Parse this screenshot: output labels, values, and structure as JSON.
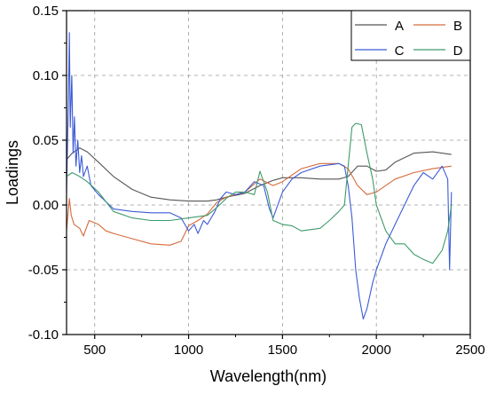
{
  "chart_data": {
    "type": "line",
    "title": "",
    "xlabel": "Wavelength(nm)",
    "ylabel": "Loadings",
    "xlim": [
      350,
      2500
    ],
    "ylim": [
      -0.1,
      0.15
    ],
    "xticks": [
      500,
      1000,
      1500,
      2000,
      2500
    ],
    "xtick_labels": [
      "500",
      "1000",
      "1500",
      "2000",
      "2500"
    ],
    "yticks": [
      -0.1,
      -0.05,
      0.0,
      0.05,
      0.1,
      0.15
    ],
    "ytick_labels": [
      "-0.10",
      "-0.05",
      "0.00",
      "0.05",
      "0.10",
      "0.15"
    ],
    "grid": true,
    "legend_position": "top-right",
    "series": [
      {
        "name": "A",
        "color": "#555555",
        "points": [
          [
            350,
            0.035
          ],
          [
            380,
            0.04
          ],
          [
            420,
            0.044
          ],
          [
            460,
            0.041
          ],
          [
            520,
            0.033
          ],
          [
            600,
            0.022
          ],
          [
            700,
            0.012
          ],
          [
            800,
            0.006
          ],
          [
            900,
            0.004
          ],
          [
            1000,
            0.003
          ],
          [
            1100,
            0.003
          ],
          [
            1150,
            0.004
          ],
          [
            1200,
            0.006
          ],
          [
            1300,
            0.009
          ],
          [
            1380,
            0.015
          ],
          [
            1450,
            0.019
          ],
          [
            1500,
            0.021
          ],
          [
            1600,
            0.021
          ],
          [
            1700,
            0.02
          ],
          [
            1800,
            0.02
          ],
          [
            1850,
            0.022
          ],
          [
            1900,
            0.03
          ],
          [
            1950,
            0.03
          ],
          [
            2000,
            0.026
          ],
          [
            2050,
            0.027
          ],
          [
            2100,
            0.033
          ],
          [
            2200,
            0.04
          ],
          [
            2300,
            0.041
          ],
          [
            2400,
            0.039
          ]
        ]
      },
      {
        "name": "B",
        "color": "#d66a3c",
        "points": [
          [
            350,
            -0.02
          ],
          [
            365,
            0.005
          ],
          [
            375,
            -0.008
          ],
          [
            390,
            -0.015
          ],
          [
            420,
            -0.018
          ],
          [
            440,
            -0.024
          ],
          [
            470,
            -0.012
          ],
          [
            520,
            -0.015
          ],
          [
            560,
            -0.02
          ],
          [
            600,
            -0.022
          ],
          [
            700,
            -0.026
          ],
          [
            800,
            -0.03
          ],
          [
            900,
            -0.031
          ],
          [
            960,
            -0.028
          ],
          [
            1000,
            -0.016
          ],
          [
            1050,
            -0.012
          ],
          [
            1100,
            -0.007
          ],
          [
            1150,
            0.002
          ],
          [
            1200,
            0.006
          ],
          [
            1300,
            0.01
          ],
          [
            1380,
            0.02
          ],
          [
            1450,
            0.015
          ],
          [
            1500,
            0.018
          ],
          [
            1600,
            0.028
          ],
          [
            1700,
            0.032
          ],
          [
            1800,
            0.032
          ],
          [
            1850,
            0.028
          ],
          [
            1900,
            0.015
          ],
          [
            1950,
            0.008
          ],
          [
            2000,
            0.01
          ],
          [
            2050,
            0.015
          ],
          [
            2100,
            0.02
          ],
          [
            2200,
            0.025
          ],
          [
            2300,
            0.028
          ],
          [
            2400,
            0.03
          ]
        ]
      },
      {
        "name": "C",
        "color": "#3b5bd6",
        "points": [
          [
            350,
            0.01
          ],
          [
            360,
            0.08
          ],
          [
            365,
            0.133
          ],
          [
            370,
            0.06
          ],
          [
            378,
            0.1
          ],
          [
            385,
            0.04
          ],
          [
            392,
            0.068
          ],
          [
            400,
            0.03
          ],
          [
            410,
            0.05
          ],
          [
            420,
            0.025
          ],
          [
            430,
            0.038
          ],
          [
            440,
            0.022
          ],
          [
            460,
            0.03
          ],
          [
            480,
            0.015
          ],
          [
            520,
            0.008
          ],
          [
            600,
            -0.003
          ],
          [
            700,
            -0.005
          ],
          [
            800,
            -0.006
          ],
          [
            900,
            -0.006
          ],
          [
            960,
            -0.01
          ],
          [
            1000,
            -0.02
          ],
          [
            1030,
            -0.015
          ],
          [
            1050,
            -0.022
          ],
          [
            1080,
            -0.012
          ],
          [
            1100,
            -0.015
          ],
          [
            1140,
            -0.005
          ],
          [
            1170,
            0.005
          ],
          [
            1200,
            0.01
          ],
          [
            1250,
            0.008
          ],
          [
            1300,
            0.01
          ],
          [
            1350,
            0.018
          ],
          [
            1400,
            0.015
          ],
          [
            1430,
            -0.003
          ],
          [
            1450,
            -0.01
          ],
          [
            1500,
            0.01
          ],
          [
            1550,
            0.02
          ],
          [
            1600,
            0.025
          ],
          [
            1700,
            0.03
          ],
          [
            1800,
            0.032
          ],
          [
            1830,
            0.03
          ],
          [
            1850,
            0.015
          ],
          [
            1870,
            -0.01
          ],
          [
            1890,
            -0.05
          ],
          [
            1910,
            -0.072
          ],
          [
            1930,
            -0.088
          ],
          [
            1950,
            -0.08
          ],
          [
            1980,
            -0.06
          ],
          [
            2000,
            -0.05
          ],
          [
            2050,
            -0.03
          ],
          [
            2100,
            -0.015
          ],
          [
            2150,
            0.0
          ],
          [
            2200,
            0.015
          ],
          [
            2250,
            0.025
          ],
          [
            2300,
            0.02
          ],
          [
            2350,
            0.03
          ],
          [
            2380,
            0.02
          ],
          [
            2390,
            -0.05
          ],
          [
            2400,
            0.01
          ]
        ]
      },
      {
        "name": "D",
        "color": "#3e9a6a",
        "points": [
          [
            350,
            0.022
          ],
          [
            380,
            0.025
          ],
          [
            420,
            0.022
          ],
          [
            460,
            0.018
          ],
          [
            520,
            0.01
          ],
          [
            600,
            -0.005
          ],
          [
            700,
            -0.01
          ],
          [
            800,
            -0.012
          ],
          [
            900,
            -0.012
          ],
          [
            1000,
            -0.01
          ],
          [
            1100,
            -0.008
          ],
          [
            1150,
            -0.002
          ],
          [
            1200,
            0.005
          ],
          [
            1250,
            0.01
          ],
          [
            1300,
            0.01
          ],
          [
            1350,
            0.008
          ],
          [
            1380,
            0.026
          ],
          [
            1420,
            0.01
          ],
          [
            1450,
            -0.012
          ],
          [
            1500,
            -0.015
          ],
          [
            1550,
            -0.016
          ],
          [
            1600,
            -0.02
          ],
          [
            1700,
            -0.018
          ],
          [
            1750,
            -0.012
          ],
          [
            1800,
            -0.005
          ],
          [
            1830,
            0.0
          ],
          [
            1850,
            0.03
          ],
          [
            1870,
            0.06
          ],
          [
            1890,
            0.063
          ],
          [
            1920,
            0.062
          ],
          [
            1950,
            0.04
          ],
          [
            1980,
            0.02
          ],
          [
            2000,
            0.0
          ],
          [
            2050,
            -0.02
          ],
          [
            2100,
            -0.03
          ],
          [
            2150,
            -0.03
          ],
          [
            2200,
            -0.038
          ],
          [
            2250,
            -0.042
          ],
          [
            2300,
            -0.045
          ],
          [
            2350,
            -0.035
          ],
          [
            2380,
            -0.02
          ],
          [
            2400,
            0.0
          ]
        ]
      }
    ]
  }
}
